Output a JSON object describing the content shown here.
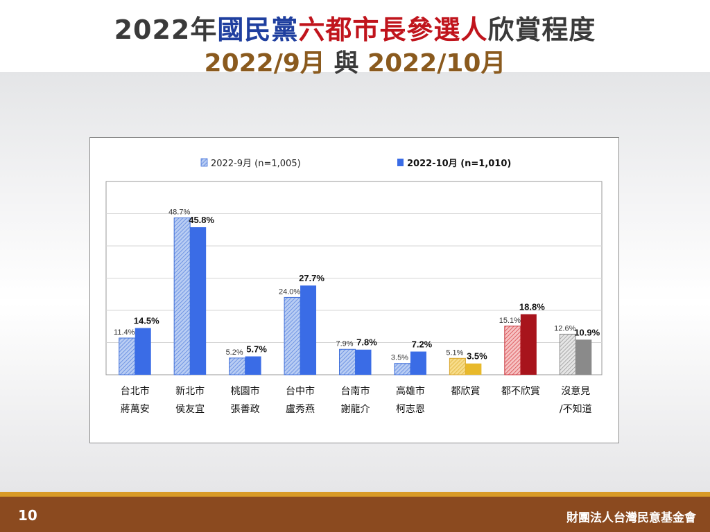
{
  "title": {
    "part1": "2022年",
    "part2": "國民黨",
    "part3": "六都市長參選人",
    "part4": "欣賞程度",
    "sub1": "2022/9月",
    "sub2": " 與 ",
    "sub3": "2022/10月"
  },
  "footer": {
    "page_number": "10",
    "organization": "財團法人台灣民意基金會"
  },
  "colors": {
    "sep_fill": "#b9cdf3",
    "sep_stroke": "#3f6fd9",
    "oct_fill": "#3a6ce6",
    "yellow_sep": "#f7dc8a",
    "yellow_oct": "#e8b92b",
    "red_sep": "#f6c3c3",
    "red_oct": "#a8141c",
    "gray_sep": "#e2e2e2",
    "gray_oct": "#8a8a8a"
  },
  "chart_data": {
    "type": "bar",
    "categories": [
      [
        "台北市",
        "蔣萬安"
      ],
      [
        "新北市",
        "侯友宜"
      ],
      [
        "桃園市",
        "張善政"
      ],
      [
        "台中市",
        "盧秀燕"
      ],
      [
        "台南市",
        "謝龍介"
      ],
      [
        "高雄市",
        "柯志恩"
      ],
      [
        "都欣賞"
      ],
      [
        "都不欣賞"
      ],
      [
        "沒意見",
        "/不知道"
      ]
    ],
    "series": [
      {
        "name": "2022-9月 (n=1,005)",
        "values": [
          11.4,
          48.7,
          5.2,
          24.0,
          7.9,
          3.5,
          5.1,
          15.1,
          12.6
        ],
        "labels": [
          "11.4%",
          "48.7%",
          "5.2%",
          "24.0%",
          "7.9%",
          "3.5%",
          "5.1%",
          "15.1%",
          "12.6%"
        ]
      },
      {
        "name": "2022-10月 (n=1,010)",
        "values": [
          14.5,
          45.8,
          5.7,
          27.7,
          7.8,
          7.2,
          3.5,
          18.8,
          10.9
        ],
        "labels": [
          "14.5%",
          "45.8%",
          "5.7%",
          "27.7%",
          "7.8%",
          "7.2%",
          "3.5%",
          "18.8%",
          "10.9%"
        ]
      }
    ],
    "ylim": [
      0,
      60
    ],
    "grid": true,
    "legend_position": "top"
  }
}
